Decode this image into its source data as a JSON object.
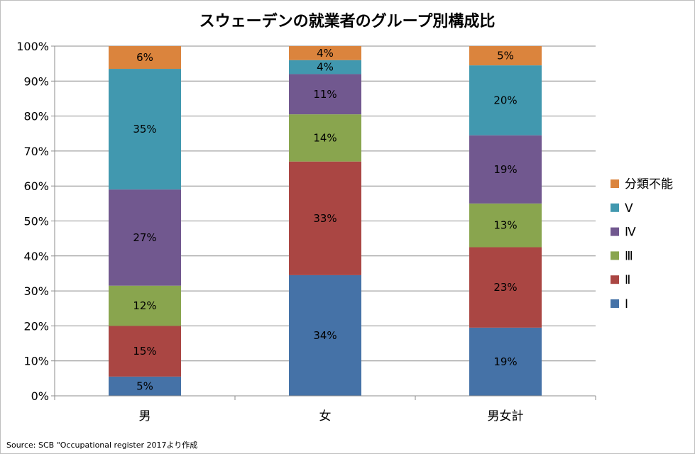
{
  "chart_data": {
    "type": "bar",
    "stacked": true,
    "title": "スウェーデンの就業者のグループ別構成比",
    "categories": [
      "男",
      "女",
      "男女計"
    ],
    "ylim": [
      0,
      1
    ],
    "yticks": [
      "0%",
      "10%",
      "20%",
      "30%",
      "40%",
      "50%",
      "60%",
      "70%",
      "80%",
      "90%",
      "100%"
    ],
    "grid": true,
    "legend_position": "right",
    "series": [
      {
        "name": "Ⅰ",
        "color": "#4572a7",
        "values": [
          0.055,
          0.345,
          0.195
        ],
        "labels": [
          "5%",
          "34%",
          "19%"
        ]
      },
      {
        "name": "Ⅱ",
        "color": "#aa4643",
        "values": [
          0.145,
          0.325,
          0.23
        ],
        "labels": [
          "15%",
          "33%",
          "23%"
        ]
      },
      {
        "name": "Ⅲ",
        "color": "#89a54e",
        "values": [
          0.115,
          0.135,
          0.125
        ],
        "labels": [
          "12%",
          "14%",
          "13%"
        ]
      },
      {
        "name": "Ⅳ",
        "color": "#71588f",
        "values": [
          0.275,
          0.115,
          0.195
        ],
        "labels": [
          "27%",
          "11%",
          "19%"
        ]
      },
      {
        "name": "Ⅴ",
        "color": "#4198af",
        "values": [
          0.345,
          0.04,
          0.2
        ],
        "labels": [
          "35%",
          "4%",
          "20%"
        ]
      },
      {
        "name": "分類不能",
        "color": "#db843d",
        "values": [
          0.065,
          0.04,
          0.055
        ],
        "labels": [
          "6%",
          "4%",
          "5%"
        ]
      }
    ]
  },
  "source": "Source: SCB \"Occupational register 2017より作成"
}
